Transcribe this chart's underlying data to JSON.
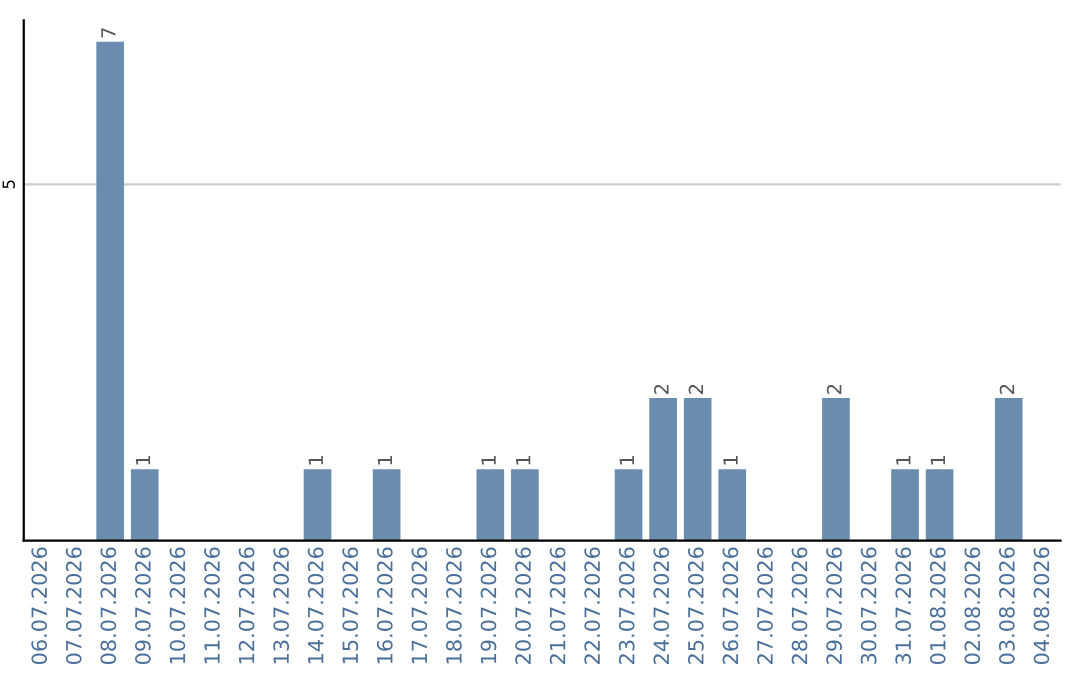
{
  "chart_data": {
    "type": "bar",
    "categories": [
      "06.07.2026",
      "07.07.2026",
      "08.07.2026",
      "09.07.2026",
      "10.07.2026",
      "11.07.2026",
      "12.07.2026",
      "13.07.2026",
      "14.07.2026",
      "15.07.2026",
      "16.07.2026",
      "17.07.2026",
      "18.07.2026",
      "19.07.2026",
      "20.07.2026",
      "21.07.2026",
      "22.07.2026",
      "23.07.2026",
      "24.07.2026",
      "25.07.2026",
      "26.07.2026",
      "27.07.2026",
      "28.07.2026",
      "29.07.2026",
      "30.07.2026",
      "31.07.2026",
      "01.08.2026",
      "02.08.2026",
      "03.08.2026",
      "04.08.2026"
    ],
    "values": [
      0,
      0,
      7,
      1,
      0,
      0,
      0,
      0,
      1,
      0,
      1,
      0,
      0,
      1,
      1,
      0,
      0,
      1,
      2,
      2,
      1,
      0,
      0,
      2,
      0,
      1,
      1,
      0,
      2,
      0
    ],
    "value_labels": [
      null,
      null,
      "7",
      "1",
      null,
      null,
      null,
      null,
      "1",
      null,
      "1",
      null,
      null,
      "1",
      "1",
      null,
      null,
      "1",
      "2",
      "2",
      "1",
      null,
      null,
      "2",
      null,
      "1",
      "1",
      null,
      "2",
      null
    ],
    "color": "#6a8caf",
    "ylim": [
      0,
      7.3
    ],
    "yticks": [
      5
    ],
    "grid": "y",
    "legend": false
  }
}
